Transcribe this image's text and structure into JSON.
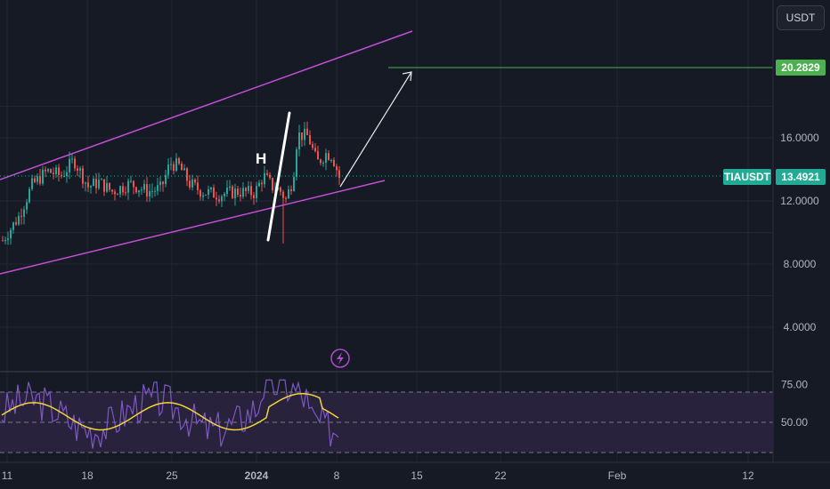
{
  "toolbar": {
    "currency_label": "USDT"
  },
  "colors": {
    "background": "#161a25",
    "grid": "#222633",
    "up": "#26a69a",
    "down": "#ef5350",
    "channel": "#c24fd6",
    "target": "#4caf50",
    "price_tag": "#22ab94",
    "rsi_line": "#7e57c2",
    "rsi_ma": "#f0d43a",
    "rsi_band": "#2a2440"
  },
  "chart_data": {
    "type": "candlestick",
    "symbol": "TIAUSDT",
    "last_price": "13.4921",
    "target_label": "20.2829",
    "annotation_text": "H",
    "y_ticks": [
      "16.0000",
      "12.0000",
      "8.0000",
      "4.0000"
    ],
    "y_tick_values": [
      16,
      12,
      8,
      4
    ],
    "x_ticks": [
      "11",
      "18",
      "25",
      "2024",
      "8",
      "15",
      "22",
      "Feb",
      "12"
    ],
    "rsi": {
      "ticks": [
        "75.00",
        "50.00"
      ],
      "tick_values": [
        75,
        50
      ],
      "band": [
        30,
        70
      ]
    }
  }
}
